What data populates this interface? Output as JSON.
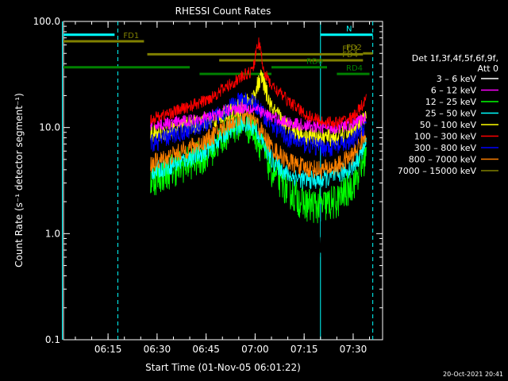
{
  "chart_data": {
    "type": "line",
    "title": "RHESSI Count Rates",
    "xlabel": "Start Time (01-Nov-05 06:01:22)",
    "ylabel": "Count Rate (s⁻¹ detector segment⁻¹)",
    "yscale": "log",
    "ylim": [
      0.1,
      100
    ],
    "xlim_minutes": [
      6.0,
      7.667
    ],
    "x_ticks": [
      "06:15",
      "06:30",
      "06:45",
      "07:00",
      "07:15",
      "07:30"
    ],
    "y_ticks": [
      "0.1",
      "1.0",
      "10.0",
      "100.0"
    ],
    "timestamp": "20-Oct-2021 20:41",
    "legend": {
      "header": [
        "Det 1f,3f,4f,5f,6f,9f,",
        "Att 0"
      ],
      "entries": [
        {
          "label": "3 – 6 keV",
          "color": "#ffffff"
        },
        {
          "label": "6 – 12 keV",
          "color": "#ff00ff"
        },
        {
          "label": "12 – 25 keV",
          "color": "#00ff00"
        },
        {
          "label": "25 – 50 keV",
          "color": "#00ffff"
        },
        {
          "label": "50 – 100 keV",
          "color": "#ffff00"
        },
        {
          "label": "100 – 300 keV",
          "color": "#ff0000"
        },
        {
          "label": "300 – 800 keV",
          "color": "#0000ff"
        },
        {
          "label": "800 – 7000 keV",
          "color": "#ff8000"
        },
        {
          "label": "7000 – 15000 keV",
          "color": "#808000"
        }
      ]
    },
    "series": [
      {
        "color": "#000000",
        "x": [
          "06:28",
          "06:35",
          "06:45",
          "06:52",
          "06:56",
          "07:00",
          "07:05",
          "07:10",
          "07:15",
          "07:20",
          "07:25",
          "07:30",
          "07:32",
          "07:34"
        ],
        "y": [
          3.0,
          3.6,
          4.8,
          7.8,
          10.0,
          8.0,
          3.2,
          1.6,
          1.0,
          0.8,
          1.6,
          2.8,
          4.0,
          5.5
        ]
      },
      {
        "color": "#ff00ff",
        "x": [
          "06:28",
          "06:35",
          "06:45",
          "06:52",
          "06:56",
          "07:00",
          "07:05",
          "07:10",
          "07:15",
          "07:20",
          "07:25",
          "07:30",
          "07:32",
          "07:34"
        ],
        "y": [
          10.5,
          11.0,
          12.5,
          14.5,
          15.5,
          15.0,
          12.5,
          11.2,
          10.5,
          10.0,
          10.0,
          10.8,
          11.5,
          12.5
        ]
      },
      {
        "color": "#00ff00",
        "x": [
          "06:28",
          "06:35",
          "06:45",
          "06:52",
          "06:56",
          "07:00",
          "07:05",
          "07:10",
          "07:15",
          "07:20",
          "07:25",
          "07:30",
          "07:32",
          "07:34"
        ],
        "y": [
          3.2,
          4.0,
          5.5,
          9.5,
          11.5,
          9.0,
          4.0,
          2.6,
          1.9,
          1.8,
          2.0,
          3.0,
          4.0,
          5.5
        ]
      },
      {
        "color": "#00ffff",
        "x": [
          "06:28",
          "06:35",
          "06:45",
          "06:52",
          "06:56",
          "07:00",
          "07:05",
          "07:10",
          "07:15",
          "07:20",
          "07:25",
          "07:30",
          "07:32",
          "07:34"
        ],
        "y": [
          3.8,
          4.5,
          6.0,
          9.5,
          11.0,
          10.0,
          5.0,
          3.6,
          3.2,
          3.2,
          3.5,
          4.3,
          5.5,
          7.0
        ]
      },
      {
        "color": "#ffff00",
        "x": [
          "06:28",
          "06:35",
          "06:45",
          "06:52",
          "06:56",
          "06:59",
          "07:00",
          "07:02",
          "07:05",
          "07:10",
          "07:15",
          "07:20",
          "07:25",
          "07:30",
          "07:34"
        ],
        "y": [
          8.5,
          9.5,
          11.5,
          14.0,
          16.0,
          18.0,
          22.0,
          30.0,
          15.0,
          10.0,
          8.5,
          8.0,
          8.0,
          9.5,
          12.0
        ]
      },
      {
        "color": "#ff0000",
        "x": [
          "06:28",
          "06:35",
          "06:45",
          "06:52",
          "06:56",
          "06:59",
          "07:00",
          "07:01",
          "07:03",
          "07:05",
          "07:10",
          "07:15",
          "07:20",
          "07:25",
          "07:30",
          "07:32",
          "07:34"
        ],
        "y": [
          12.0,
          14.0,
          18.0,
          25.0,
          30.0,
          34.0,
          45.0,
          65.0,
          32.0,
          25.0,
          18.0,
          13.5,
          11.5,
          11.0,
          12.5,
          15.0,
          18.0
        ]
      },
      {
        "color": "#0000ff",
        "x": [
          "06:28",
          "06:35",
          "06:45",
          "06:52",
          "06:56",
          "07:00",
          "07:05",
          "07:10",
          "07:15",
          "07:20",
          "07:25",
          "07:30",
          "07:32",
          "07:34"
        ],
        "y": [
          7.0,
          8.5,
          11.0,
          15.5,
          18.0,
          16.5,
          11.0,
          8.0,
          7.0,
          6.5,
          6.5,
          7.5,
          9.0,
          11.0
        ]
      },
      {
        "color": "#ff8000",
        "x": [
          "06:28",
          "06:35",
          "06:45",
          "06:52",
          "06:56",
          "07:00",
          "07:05",
          "07:10",
          "07:15",
          "07:20",
          "07:25",
          "07:30",
          "07:32",
          "07:34"
        ],
        "y": [
          4.5,
          5.5,
          7.5,
          11.0,
          13.0,
          11.5,
          6.5,
          4.8,
          4.2,
          4.0,
          4.3,
          5.5,
          7.0,
          9.0
        ]
      },
      {
        "color": "#808000",
        "x": [],
        "y": []
      }
    ],
    "flags": [
      {
        "label": "N",
        "color": "#00ffff",
        "y": 75,
        "segments": [
          [
            "06:01",
            "06:17"
          ],
          [
            "07:20",
            "07:36"
          ]
        ]
      },
      {
        "label": "FD1",
        "color": "#808000",
        "y": 65,
        "segments": [
          [
            "06:01",
            "06:26"
          ]
        ]
      },
      {
        "label": "FD3",
        "color": "#808000",
        "y": 49,
        "segments": [
          [
            "06:27",
            "07:33"
          ]
        ]
      },
      {
        "label": "FD4",
        "color": "#808000",
        "y": 43,
        "segments": [
          [
            "06:49",
            "07:33"
          ]
        ]
      },
      {
        "label": "FD2",
        "color": "#808000",
        "y": 50,
        "segments": [
          [
            "07:33",
            "07:36"
          ]
        ]
      },
      {
        "label": "RD0",
        "color": "#008000",
        "y": 37,
        "segments": [
          [
            "06:01",
            "06:40"
          ],
          [
            "07:05",
            "07:22"
          ]
        ]
      },
      {
        "label": "RD4",
        "color": "#008000",
        "y": 32,
        "segments": [
          [
            "06:43",
            "07:05"
          ],
          [
            "07:25",
            "07:35"
          ]
        ]
      }
    ],
    "vertical_lines": [
      {
        "x": "06:01",
        "style": "solid",
        "color": "#00ffff"
      },
      {
        "x": "06:18",
        "style": "dashed",
        "color": "#00ffff"
      },
      {
        "x": "07:20",
        "style": "solid",
        "color": "#00ffff"
      },
      {
        "x": "07:36",
        "style": "dashed",
        "color": "#00ffff"
      }
    ]
  }
}
